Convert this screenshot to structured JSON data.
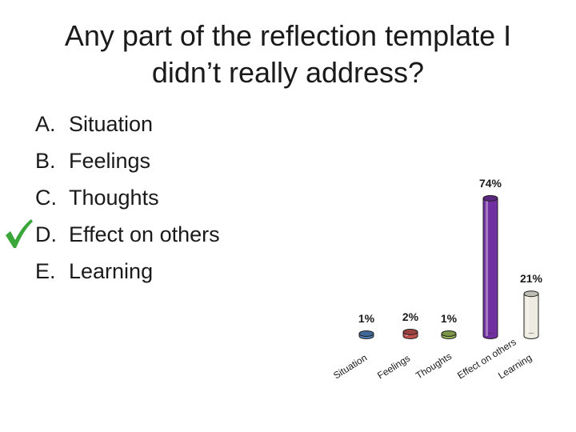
{
  "title": {
    "line1": "Any part of the reflection template I",
    "line2": "didn’t really address?"
  },
  "options": [
    {
      "letter": "A.",
      "text": "Situation"
    },
    {
      "letter": "B.",
      "text": "Feelings"
    },
    {
      "letter": "C.",
      "text": "Thoughts"
    },
    {
      "letter": "D.",
      "text": "Effect on others",
      "correct": true
    },
    {
      "letter": "E.",
      "text": "Learning"
    }
  ],
  "check_icon": "checkmark-icon",
  "colors": {
    "check": "#3aa63a",
    "bars": [
      "#4f81bd",
      "#c0504d",
      "#9bbb59",
      "#7030a0",
      "#eeece1"
    ]
  },
  "chart_data": {
    "type": "bar",
    "categories": [
      "Situation",
      "Feelings",
      "Thoughts",
      "Effect on others",
      "Learning"
    ],
    "values": [
      1,
      2,
      1,
      74,
      21
    ],
    "value_labels": [
      "1%",
      "2%",
      "1%",
      "74%",
      "21%"
    ],
    "ylim": [
      0,
      100
    ],
    "title": "",
    "xlabel": "",
    "ylabel": "",
    "grid": false,
    "legend": "none"
  }
}
